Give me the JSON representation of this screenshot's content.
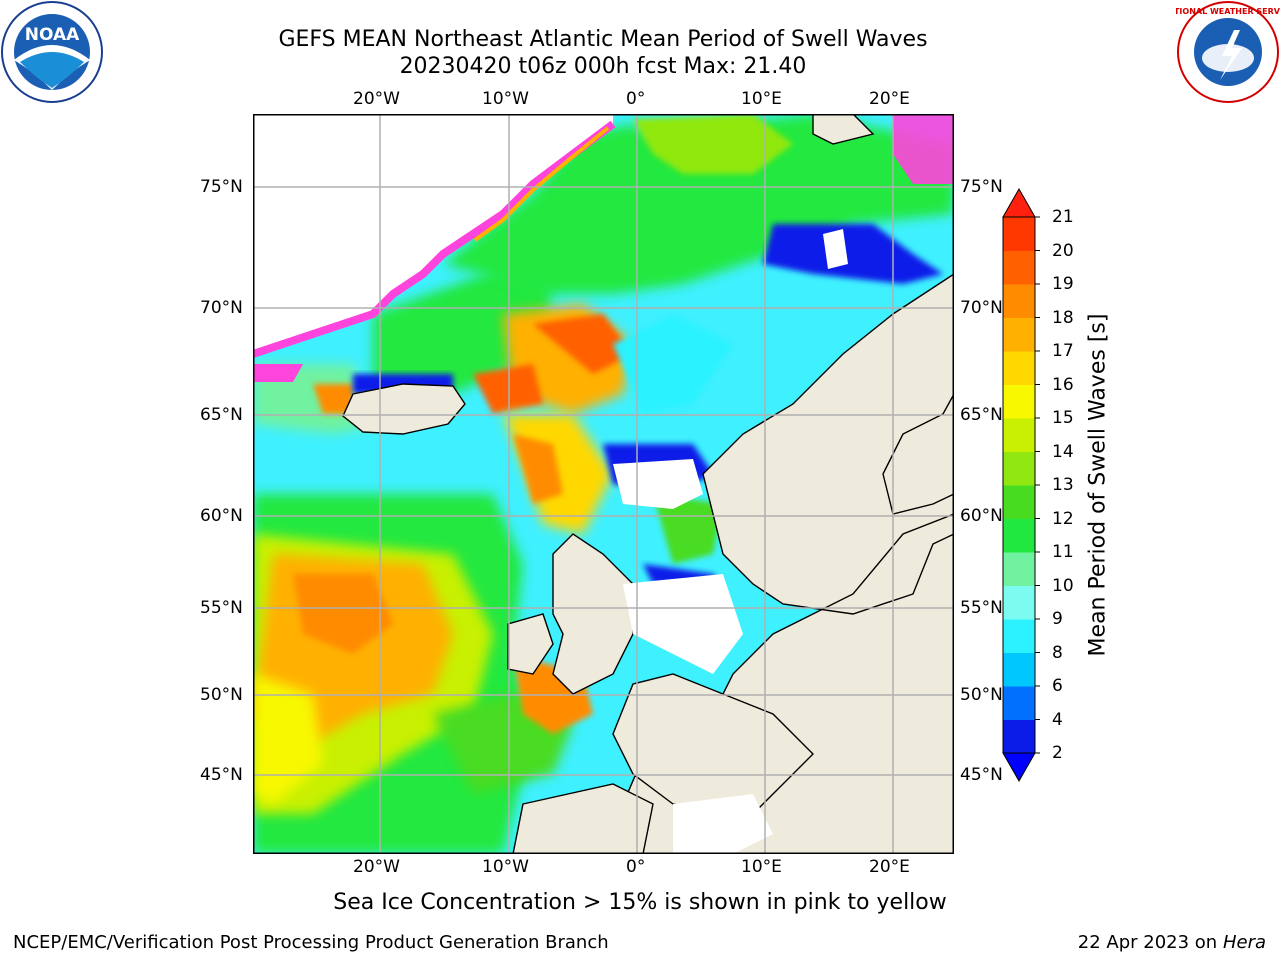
{
  "header": {
    "title_line1": "GEFS MEAN Northeast Atlantic Mean Period of Swell Waves",
    "title_line2": "20230420 t06z 000h fcst   Max: 21.40"
  },
  "logos": {
    "left": "NOAA",
    "right": "NATIONAL WEATHER SERVICE"
  },
  "map": {
    "lon_labels_top": [
      "20°W",
      "10°W",
      "0°",
      "10°E",
      "20°E"
    ],
    "lon_labels_bottom": [
      "20°W",
      "10°W",
      "0°",
      "10°E",
      "20°E"
    ],
    "lat_labels_left": [
      "75°N",
      "70°N",
      "65°N",
      "60°N",
      "55°N",
      "50°N",
      "45°N"
    ],
    "lat_labels_right": [
      "75°N",
      "70°N",
      "65°N",
      "60°N",
      "55°N",
      "50°N",
      "45°N"
    ],
    "ocean_color": "#3ff0ff",
    "land_color": "#efebdc"
  },
  "colorbar": {
    "title": "Mean Period of Swell Waves [s]",
    "tick_labels": [
      "2",
      "4",
      "6",
      "8",
      "9",
      "10",
      "11",
      "12",
      "13",
      "14",
      "15",
      "16",
      "17",
      "18",
      "19",
      "20",
      "21"
    ],
    "colors": [
      "#0b1be8",
      "#0070ff",
      "#00c8ff",
      "#2cf2ff",
      "#7cfcf0",
      "#70f2a0",
      "#20e840",
      "#48dc20",
      "#90e810",
      "#c8f000",
      "#f8f800",
      "#ffd800",
      "#ffb000",
      "#ff8c00",
      "#ff6000",
      "#ff3800",
      "#ff1400"
    ],
    "under_color": "#0000ff",
    "over_color": "#ff2010"
  },
  "note": "Sea Ice Concentration > 15% is shown in pink to yellow",
  "footer": {
    "left": "NCEP/EMC/Verification Post Processing Product Generation Branch",
    "right_date": "22 Apr 2023 on ",
    "right_host": "Hera"
  }
}
